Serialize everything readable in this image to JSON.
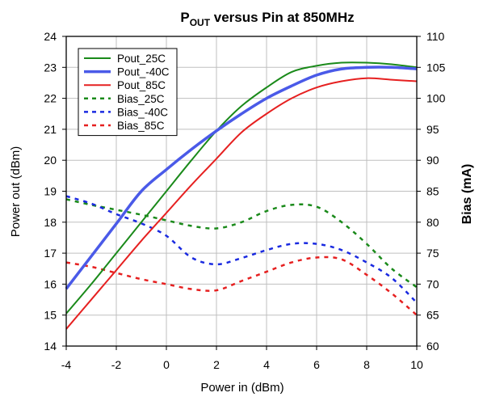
{
  "chart_data": {
    "type": "line",
    "title": {
      "main": "P",
      "sub": "OUT",
      "rest": " versus Pin at 850MHz"
    },
    "xlabel": "Power in (dBm)",
    "ylabel_left": "Power out (dBm)",
    "ylabel_right": "Bias (mA)",
    "xlim": [
      -4,
      10
    ],
    "ylim_left": [
      14,
      24
    ],
    "ylim_right": [
      60,
      110
    ],
    "x_ticks": [
      -4,
      -2,
      0,
      2,
      4,
      6,
      8,
      10
    ],
    "y_left_ticks": [
      14,
      15,
      16,
      17,
      18,
      19,
      20,
      21,
      22,
      23,
      24
    ],
    "y_right_ticks": [
      60,
      65,
      70,
      75,
      80,
      85,
      90,
      95,
      100,
      105,
      110
    ],
    "grid": true,
    "legend_position": "top-left",
    "series": [
      {
        "name": "Pout_25C",
        "axis": "left",
        "style": "solid",
        "color": "#1a8a1a",
        "width": 2,
        "x": [
          -4,
          -3,
          -2,
          -1,
          0,
          1,
          2,
          3,
          4,
          5,
          6,
          7,
          8,
          9,
          10
        ],
        "y": [
          15.05,
          16.0,
          17.0,
          18.0,
          19.0,
          20.0,
          20.95,
          21.75,
          22.35,
          22.85,
          23.05,
          23.15,
          23.15,
          23.1,
          23.0
        ]
      },
      {
        "name": "Pout_-40C",
        "axis": "left",
        "style": "solid",
        "color": "#4a5ae8",
        "width": 3.5,
        "x": [
          -4,
          -3,
          -2,
          -1,
          0,
          1,
          2,
          3,
          4,
          5,
          6,
          7,
          8,
          9,
          10
        ],
        "y": [
          15.85,
          16.9,
          17.95,
          19.0,
          19.7,
          20.35,
          20.95,
          21.5,
          22.0,
          22.4,
          22.75,
          22.95,
          23.0,
          23.0,
          22.95
        ]
      },
      {
        "name": "Pout_85C",
        "axis": "left",
        "style": "solid",
        "color": "#e62020",
        "width": 2,
        "x": [
          -4,
          -3,
          -2,
          -1,
          0,
          1,
          2,
          3,
          4,
          5,
          6,
          7,
          8,
          9,
          10
        ],
        "y": [
          14.55,
          15.5,
          16.45,
          17.4,
          18.3,
          19.2,
          20.05,
          20.9,
          21.5,
          22.0,
          22.35,
          22.55,
          22.65,
          22.6,
          22.55
        ]
      },
      {
        "name": "Bias_25C",
        "axis": "right",
        "style": "dashed",
        "color": "#1a8a1a",
        "width": 2.5,
        "x": [
          -4,
          -3,
          -2,
          -1,
          0,
          1,
          2,
          3,
          4,
          5,
          6,
          7,
          8,
          9,
          10
        ],
        "y": [
          83.7,
          82.8,
          82.0,
          81.2,
          80.3,
          79.4,
          79.0,
          80.0,
          81.8,
          82.8,
          82.5,
          80.0,
          76.5,
          72.5,
          69.5
        ]
      },
      {
        "name": "Bias_-40C",
        "axis": "right",
        "style": "dashed",
        "color": "#1a2ae0",
        "width": 2.5,
        "x": [
          -4,
          -3,
          -2,
          -1,
          0,
          1,
          2,
          3,
          4,
          5,
          6,
          7,
          8,
          9,
          10
        ],
        "y": [
          84.2,
          83.0,
          81.3,
          79.8,
          77.8,
          74.3,
          73.2,
          74.2,
          75.5,
          76.5,
          76.5,
          75.5,
          73.5,
          71.0,
          67.0
        ]
      },
      {
        "name": "Bias_85C",
        "axis": "right",
        "style": "dashed",
        "color": "#e62020",
        "width": 2.5,
        "x": [
          -4,
          -3,
          -2,
          -1,
          0,
          1,
          2,
          3,
          4,
          5,
          6,
          7,
          8,
          9,
          10
        ],
        "y": [
          73.5,
          72.8,
          71.8,
          70.8,
          70.0,
          69.2,
          69.0,
          70.5,
          72.0,
          73.5,
          74.3,
          74.0,
          71.5,
          68.5,
          65.0
        ]
      }
    ]
  }
}
